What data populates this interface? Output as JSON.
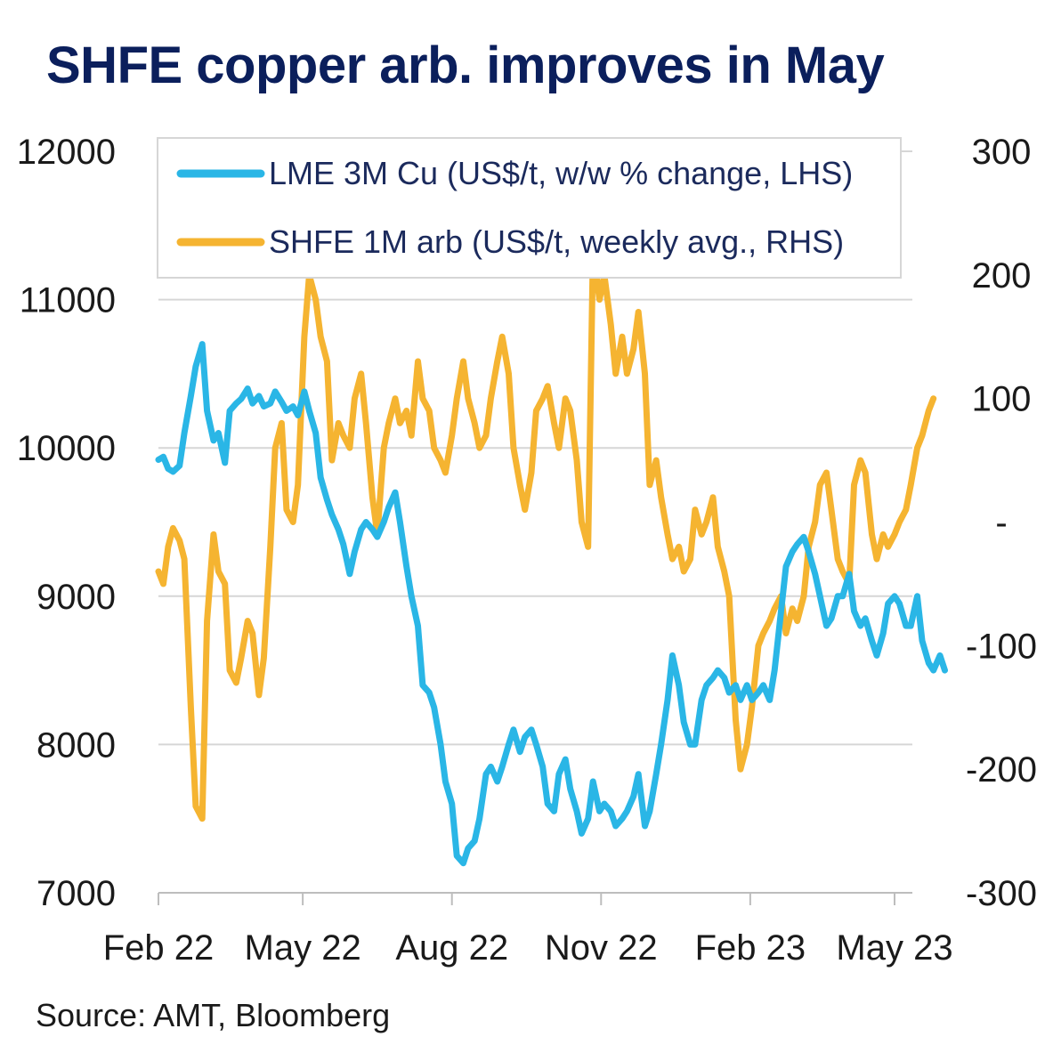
{
  "title": "SHFE copper arb. improves in May",
  "source": "Source: AMT, Bloomberg",
  "colors": {
    "title": "#0b1f5c",
    "lme": "#2ab6e6",
    "shfe": "#f5b431",
    "grid": "#d6d6d6"
  },
  "chart_data": {
    "type": "line",
    "grid": true,
    "legend_placement": "top",
    "x_ticks": [
      "Feb 22",
      "May 22",
      "Aug 22",
      "Nov 22",
      "Feb 23",
      "May 23"
    ],
    "x_tick_dates": [
      "2022-02-01",
      "2022-05-01",
      "2022-08-01",
      "2022-11-01",
      "2023-02-01",
      "2023-05-01"
    ],
    "y_left": {
      "ticks": [
        "12000",
        "11000",
        "10000",
        "9000",
        "8000",
        "7000"
      ],
      "lim": [
        7000,
        12000
      ]
    },
    "y_right": {
      "ticks": [
        "300",
        "200",
        "100",
        "-",
        "-100",
        "-200",
        "-300"
      ],
      "lim": [
        -300,
        300
      ]
    },
    "series": [
      {
        "name": "LME 3M Cu (US$/t, w/w % change, LHS)",
        "axis": "left",
        "points": [
          [
            "2022-02-01",
            9920
          ],
          [
            "2022-02-04",
            9940
          ],
          [
            "2022-02-07",
            9860
          ],
          [
            "2022-02-10",
            9840
          ],
          [
            "2022-02-14",
            9880
          ],
          [
            "2022-02-17",
            10100
          ],
          [
            "2022-02-21",
            10350
          ],
          [
            "2022-02-24",
            10550
          ],
          [
            "2022-02-28",
            10700
          ],
          [
            "2022-03-03",
            10250
          ],
          [
            "2022-03-07",
            10050
          ],
          [
            "2022-03-10",
            10100
          ],
          [
            "2022-03-14",
            9900
          ],
          [
            "2022-03-17",
            10250
          ],
          [
            "2022-03-21",
            10300
          ],
          [
            "2022-03-24",
            10330
          ],
          [
            "2022-03-28",
            10400
          ],
          [
            "2022-03-31",
            10300
          ],
          [
            "2022-04-04",
            10350
          ],
          [
            "2022-04-07",
            10280
          ],
          [
            "2022-04-11",
            10300
          ],
          [
            "2022-04-14",
            10380
          ],
          [
            "2022-04-18",
            10310
          ],
          [
            "2022-04-21",
            10250
          ],
          [
            "2022-04-25",
            10280
          ],
          [
            "2022-04-28",
            10220
          ],
          [
            "2022-05-02",
            10380
          ],
          [
            "2022-05-05",
            10250
          ],
          [
            "2022-05-09",
            10100
          ],
          [
            "2022-05-12",
            9800
          ],
          [
            "2022-05-16",
            9650
          ],
          [
            "2022-05-19",
            9550
          ],
          [
            "2022-05-23",
            9450
          ],
          [
            "2022-05-26",
            9350
          ],
          [
            "2022-05-30",
            9150
          ],
          [
            "2022-06-02",
            9300
          ],
          [
            "2022-06-06",
            9450
          ],
          [
            "2022-06-09",
            9500
          ],
          [
            "2022-06-13",
            9450
          ],
          [
            "2022-06-16",
            9400
          ],
          [
            "2022-06-20",
            9500
          ],
          [
            "2022-06-23",
            9600
          ],
          [
            "2022-06-27",
            9700
          ],
          [
            "2022-06-30",
            9500
          ],
          [
            "2022-07-04",
            9200
          ],
          [
            "2022-07-07",
            9000
          ],
          [
            "2022-07-11",
            8800
          ],
          [
            "2022-07-14",
            8400
          ],
          [
            "2022-07-18",
            8350
          ],
          [
            "2022-07-21",
            8250
          ],
          [
            "2022-07-25",
            8000
          ],
          [
            "2022-07-28",
            7750
          ],
          [
            "2022-08-01",
            7600
          ],
          [
            "2022-08-04",
            7250
          ],
          [
            "2022-08-08",
            7200
          ],
          [
            "2022-08-11",
            7300
          ],
          [
            "2022-08-15",
            7350
          ],
          [
            "2022-08-18",
            7500
          ],
          [
            "2022-08-22",
            7800
          ],
          [
            "2022-08-25",
            7850
          ],
          [
            "2022-08-29",
            7750
          ],
          [
            "2022-09-01",
            7850
          ],
          [
            "2022-09-05",
            8000
          ],
          [
            "2022-09-08",
            8100
          ],
          [
            "2022-09-12",
            7950
          ],
          [
            "2022-09-15",
            8050
          ],
          [
            "2022-09-19",
            8100
          ],
          [
            "2022-09-22",
            8000
          ],
          [
            "2022-09-26",
            7850
          ],
          [
            "2022-09-29",
            7600
          ],
          [
            "2022-10-03",
            7550
          ],
          [
            "2022-10-06",
            7800
          ],
          [
            "2022-10-10",
            7900
          ],
          [
            "2022-10-13",
            7700
          ],
          [
            "2022-10-17",
            7550
          ],
          [
            "2022-10-20",
            7400
          ],
          [
            "2022-10-24",
            7500
          ],
          [
            "2022-10-27",
            7750
          ],
          [
            "2022-10-31",
            7550
          ],
          [
            "2022-11-03",
            7600
          ],
          [
            "2022-11-07",
            7550
          ],
          [
            "2022-11-10",
            7450
          ],
          [
            "2022-11-14",
            7500
          ],
          [
            "2022-11-17",
            7550
          ],
          [
            "2022-11-21",
            7650
          ],
          [
            "2022-11-24",
            7800
          ],
          [
            "2022-11-28",
            7450
          ],
          [
            "2022-12-01",
            7550
          ],
          [
            "2022-12-05",
            7800
          ],
          [
            "2022-12-08",
            8000
          ],
          [
            "2022-12-12",
            8300
          ],
          [
            "2022-12-15",
            8600
          ],
          [
            "2022-12-19",
            8400
          ],
          [
            "2022-12-22",
            8150
          ],
          [
            "2022-12-26",
            8000
          ],
          [
            "2022-12-29",
            8000
          ],
          [
            "2023-01-02",
            8300
          ],
          [
            "2023-01-05",
            8400
          ],
          [
            "2023-01-09",
            8450
          ],
          [
            "2023-01-12",
            8500
          ],
          [
            "2023-01-16",
            8450
          ],
          [
            "2023-01-19",
            8350
          ],
          [
            "2023-01-23",
            8400
          ],
          [
            "2023-01-26",
            8300
          ],
          [
            "2023-01-30",
            8400
          ],
          [
            "2023-02-02",
            8300
          ],
          [
            "2023-02-06",
            8350
          ],
          [
            "2023-02-09",
            8400
          ],
          [
            "2023-02-13",
            8300
          ],
          [
            "2023-02-16",
            8500
          ],
          [
            "2023-02-20",
            8900
          ],
          [
            "2023-02-23",
            9200
          ],
          [
            "2023-02-27",
            9300
          ],
          [
            "2023-03-02",
            9350
          ],
          [
            "2023-03-06",
            9400
          ],
          [
            "2023-03-09",
            9300
          ],
          [
            "2023-03-13",
            9150
          ],
          [
            "2023-03-16",
            9000
          ],
          [
            "2023-03-20",
            8800
          ],
          [
            "2023-03-23",
            8850
          ],
          [
            "2023-03-27",
            9000
          ],
          [
            "2023-03-30",
            9000
          ],
          [
            "2023-04-03",
            9150
          ],
          [
            "2023-04-06",
            8900
          ],
          [
            "2023-04-10",
            8800
          ],
          [
            "2023-04-13",
            8850
          ],
          [
            "2023-04-17",
            8700
          ],
          [
            "2023-04-20",
            8600
          ],
          [
            "2023-04-24",
            8750
          ],
          [
            "2023-04-27",
            8950
          ],
          [
            "2023-05-01",
            9000
          ],
          [
            "2023-05-04",
            8950
          ],
          [
            "2023-05-08",
            8800
          ],
          [
            "2023-05-11",
            8800
          ],
          [
            "2023-05-15",
            9000
          ],
          [
            "2023-05-18",
            8700
          ],
          [
            "2023-05-22",
            8550
          ],
          [
            "2023-05-25",
            8500
          ],
          [
            "2023-05-29",
            8600
          ],
          [
            "2023-06-01",
            8500
          ]
        ]
      },
      {
        "name": "SHFE 1M arb (US$/t, weekly avg., RHS)",
        "axis": "right",
        "points": [
          [
            "2022-02-01",
            -40
          ],
          [
            "2022-02-04",
            -50
          ],
          [
            "2022-02-07",
            -20
          ],
          [
            "2022-02-10",
            -5
          ],
          [
            "2022-02-14",
            -15
          ],
          [
            "2022-02-17",
            -30
          ],
          [
            "2022-02-21",
            -150
          ],
          [
            "2022-02-24",
            -230
          ],
          [
            "2022-02-28",
            -240
          ],
          [
            "2022-03-03",
            -80
          ],
          [
            "2022-03-07",
            -10
          ],
          [
            "2022-03-10",
            -40
          ],
          [
            "2022-03-14",
            -50
          ],
          [
            "2022-03-17",
            -120
          ],
          [
            "2022-03-21",
            -130
          ],
          [
            "2022-03-24",
            -110
          ],
          [
            "2022-03-28",
            -80
          ],
          [
            "2022-03-31",
            -90
          ],
          [
            "2022-04-04",
            -140
          ],
          [
            "2022-04-07",
            -110
          ],
          [
            "2022-04-11",
            -20
          ],
          [
            "2022-04-14",
            60
          ],
          [
            "2022-04-18",
            80
          ],
          [
            "2022-04-21",
            10
          ],
          [
            "2022-04-25",
            0
          ],
          [
            "2022-04-28",
            30
          ],
          [
            "2022-05-02",
            150
          ],
          [
            "2022-05-05",
            200
          ],
          [
            "2022-05-09",
            180
          ],
          [
            "2022-05-12",
            150
          ],
          [
            "2022-05-16",
            130
          ],
          [
            "2022-05-19",
            50
          ],
          [
            "2022-05-23",
            80
          ],
          [
            "2022-05-26",
            70
          ],
          [
            "2022-05-30",
            60
          ],
          [
            "2022-06-02",
            100
          ],
          [
            "2022-06-06",
            120
          ],
          [
            "2022-06-09",
            80
          ],
          [
            "2022-06-13",
            20
          ],
          [
            "2022-06-16",
            -10
          ],
          [
            "2022-06-20",
            60
          ],
          [
            "2022-06-23",
            80
          ],
          [
            "2022-06-27",
            100
          ],
          [
            "2022-06-30",
            80
          ],
          [
            "2022-07-04",
            90
          ],
          [
            "2022-07-07",
            70
          ],
          [
            "2022-07-11",
            130
          ],
          [
            "2022-07-14",
            100
          ],
          [
            "2022-07-18",
            90
          ],
          [
            "2022-07-21",
            60
          ],
          [
            "2022-07-25",
            50
          ],
          [
            "2022-07-28",
            40
          ],
          [
            "2022-08-01",
            70
          ],
          [
            "2022-08-04",
            100
          ],
          [
            "2022-08-08",
            130
          ],
          [
            "2022-08-11",
            100
          ],
          [
            "2022-08-15",
            80
          ],
          [
            "2022-08-18",
            60
          ],
          [
            "2022-08-22",
            70
          ],
          [
            "2022-08-25",
            100
          ],
          [
            "2022-08-29",
            130
          ],
          [
            "2022-09-01",
            150
          ],
          [
            "2022-09-05",
            120
          ],
          [
            "2022-09-08",
            60
          ],
          [
            "2022-09-12",
            30
          ],
          [
            "2022-09-15",
            10
          ],
          [
            "2022-09-19",
            40
          ],
          [
            "2022-09-22",
            90
          ],
          [
            "2022-09-26",
            100
          ],
          [
            "2022-09-29",
            110
          ],
          [
            "2022-10-03",
            80
          ],
          [
            "2022-10-06",
            60
          ],
          [
            "2022-10-10",
            100
          ],
          [
            "2022-10-13",
            90
          ],
          [
            "2022-10-17",
            50
          ],
          [
            "2022-10-20",
            0
          ],
          [
            "2022-10-24",
            -20
          ],
          [
            "2022-10-27",
            220
          ],
          [
            "2022-10-31",
            180
          ],
          [
            "2022-11-03",
            200
          ],
          [
            "2022-11-07",
            160
          ],
          [
            "2022-11-10",
            120
          ],
          [
            "2022-11-14",
            150
          ],
          [
            "2022-11-17",
            120
          ],
          [
            "2022-11-21",
            140
          ],
          [
            "2022-11-24",
            170
          ],
          [
            "2022-11-28",
            120
          ],
          [
            "2022-12-01",
            30
          ],
          [
            "2022-12-05",
            50
          ],
          [
            "2022-12-08",
            20
          ],
          [
            "2022-12-12",
            -10
          ],
          [
            "2022-12-15",
            -30
          ],
          [
            "2022-12-19",
            -20
          ],
          [
            "2022-12-22",
            -40
          ],
          [
            "2022-12-26",
            -30
          ],
          [
            "2022-12-29",
            10
          ],
          [
            "2023-01-02",
            -10
          ],
          [
            "2023-01-05",
            0
          ],
          [
            "2023-01-09",
            20
          ],
          [
            "2023-01-12",
            -20
          ],
          [
            "2023-01-16",
            -40
          ],
          [
            "2023-01-19",
            -60
          ],
          [
            "2023-01-23",
            -160
          ],
          [
            "2023-01-26",
            -200
          ],
          [
            "2023-01-30",
            -180
          ],
          [
            "2023-02-02",
            -150
          ],
          [
            "2023-02-06",
            -100
          ],
          [
            "2023-02-09",
            -90
          ],
          [
            "2023-02-13",
            -80
          ],
          [
            "2023-02-16",
            -70
          ],
          [
            "2023-02-20",
            -60
          ],
          [
            "2023-02-23",
            -90
          ],
          [
            "2023-02-27",
            -70
          ],
          [
            "2023-03-02",
            -80
          ],
          [
            "2023-03-06",
            -60
          ],
          [
            "2023-03-09",
            -20
          ],
          [
            "2023-03-13",
            0
          ],
          [
            "2023-03-16",
            30
          ],
          [
            "2023-03-20",
            40
          ],
          [
            "2023-03-23",
            10
          ],
          [
            "2023-03-27",
            -30
          ],
          [
            "2023-03-30",
            -40
          ],
          [
            "2023-04-03",
            -50
          ],
          [
            "2023-04-06",
            30
          ],
          [
            "2023-04-10",
            50
          ],
          [
            "2023-04-13",
            40
          ],
          [
            "2023-04-17",
            -10
          ],
          [
            "2023-04-20",
            -30
          ],
          [
            "2023-04-24",
            -10
          ],
          [
            "2023-04-27",
            -20
          ],
          [
            "2023-05-01",
            -10
          ],
          [
            "2023-05-04",
            0
          ],
          [
            "2023-05-08",
            10
          ],
          [
            "2023-05-11",
            30
          ],
          [
            "2023-05-15",
            60
          ],
          [
            "2023-05-18",
            70
          ],
          [
            "2023-05-22",
            90
          ],
          [
            "2023-05-25",
            100
          ]
        ]
      }
    ]
  }
}
